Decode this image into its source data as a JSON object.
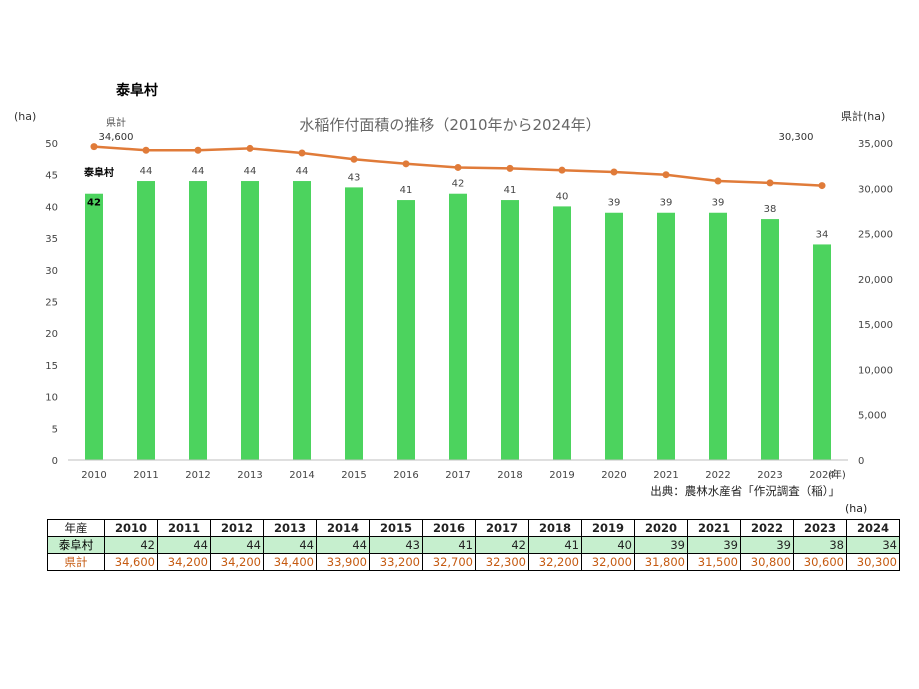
{
  "village_title": "泰阜村",
  "chart_data": {
    "type": "bar+line",
    "title": "水稲作付面積の推移（2010年から2024年）",
    "x": [
      "2010",
      "2011",
      "2012",
      "2013",
      "2014",
      "2015",
      "2016",
      "2017",
      "2018",
      "2019",
      "2020",
      "2021",
      "2022",
      "2023",
      "2024"
    ],
    "xlabel": "(年)",
    "left_axis": {
      "unit": "(ha)",
      "ylim": [
        0,
        50
      ],
      "ticks": [
        0,
        5,
        10,
        15,
        20,
        25,
        30,
        35,
        40,
        45,
        50
      ]
    },
    "right_axis": {
      "unit": "県計(ha)",
      "ylim": [
        0,
        35000
      ],
      "ticks": [
        "0",
        "5,000",
        "10,000",
        "15,000",
        "20,000",
        "25,000",
        "30,000",
        "35,000"
      ]
    },
    "series": [
      {
        "name": "泰阜村",
        "type": "bar",
        "axis": "left",
        "color": "#4cd35e",
        "values": [
          42,
          44,
          44,
          44,
          44,
          43,
          41,
          42,
          41,
          40,
          39,
          39,
          39,
          38,
          34
        ]
      },
      {
        "name": "県計",
        "type": "line",
        "axis": "right",
        "color": "#e07b39",
        "values": [
          34600,
          34200,
          34200,
          34400,
          33900,
          33200,
          32700,
          32300,
          32200,
          32000,
          31800,
          31500,
          30800,
          30600,
          30300
        ]
      }
    ],
    "annotations": {
      "bar_series_label": "泰阜村",
      "line_series_label": "県計",
      "line_first_label": "34,600",
      "line_last_label": "30,300"
    },
    "source": "出典：農林水産省「作況調査（稲）」"
  },
  "table": {
    "unit": "(ha)",
    "header_label": "年産",
    "years": [
      "2010",
      "2011",
      "2012",
      "2013",
      "2014",
      "2015",
      "2016",
      "2017",
      "2018",
      "2019",
      "2020",
      "2021",
      "2022",
      "2023",
      "2024"
    ],
    "village_label": "泰阜村",
    "village_values": [
      "42",
      "44",
      "44",
      "44",
      "44",
      "43",
      "41",
      "42",
      "41",
      "40",
      "39",
      "39",
      "39",
      "38",
      "34"
    ],
    "pref_label": "県計",
    "pref_values": [
      "34,600",
      "34,200",
      "34,200",
      "34,400",
      "33,900",
      "33,200",
      "32,700",
      "32,300",
      "32,200",
      "32,000",
      "31,800",
      "31,500",
      "30,800",
      "30,600",
      "30,300"
    ]
  }
}
